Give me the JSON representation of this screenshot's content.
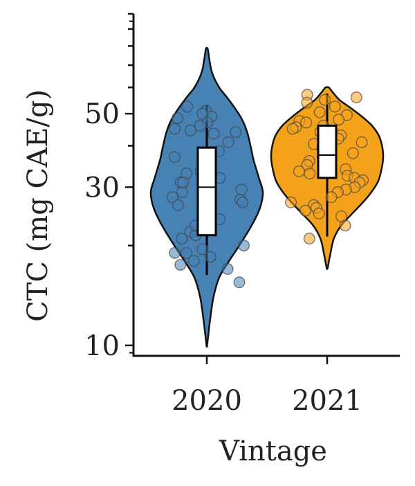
{
  "chart_data": {
    "type": "violin",
    "xlabel": "Vintage",
    "ylabel": "CTC (mg CAE/g)",
    "categories": [
      "2020",
      "2021"
    ],
    "y_scale": "log",
    "ylim": [
      9.3,
      100
    ],
    "y_ticks": [
      10,
      30,
      50
    ],
    "y_tick_labels": [
      "10",
      "30",
      "50"
    ],
    "grid": false,
    "legend": "none",
    "colors": {
      "2020": "#4682b4",
      "2021": "#f5a21b"
    },
    "series": [
      {
        "category": "2020",
        "violin_range": [
          9.9,
          79
        ],
        "density_profile": [
          [
            10.5,
            0.02
          ],
          [
            12,
            0.06
          ],
          [
            14,
            0.12
          ],
          [
            16,
            0.22
          ],
          [
            18,
            0.4
          ],
          [
            20,
            0.58
          ],
          [
            23,
            0.8
          ],
          [
            26,
            0.95
          ],
          [
            29,
            1.0
          ],
          [
            32,
            0.93
          ],
          [
            36,
            0.84
          ],
          [
            40,
            0.78
          ],
          [
            44,
            0.72
          ],
          [
            48,
            0.63
          ],
          [
            52,
            0.5
          ],
          [
            56,
            0.36
          ],
          [
            60,
            0.22
          ],
          [
            66,
            0.1
          ],
          [
            72,
            0.05
          ],
          [
            78,
            0.02
          ]
        ],
        "box": {
          "q1": 21.5,
          "median": 30,
          "q3": 39.5
        },
        "whisker": [
          16.3,
          53
        ],
        "points": [
          51,
          49,
          48.5,
          52.5,
          50,
          47,
          45,
          44,
          43.5,
          46,
          44.5,
          41,
          38.5,
          37,
          35,
          33,
          32,
          31,
          32.5,
          30,
          29,
          28,
          27.5,
          27,
          26.5,
          25.5,
          29.5,
          31,
          33.5,
          36,
          24,
          22,
          21,
          20,
          19.5,
          19,
          18.5,
          18,
          17.5,
          17,
          21.5,
          23,
          19,
          15.5
        ]
      },
      {
        "category": "2021",
        "violin_range": [
          17,
          60
        ],
        "density_profile": [
          [
            17.5,
            0.02
          ],
          [
            19,
            0.06
          ],
          [
            21,
            0.12
          ],
          [
            23,
            0.25
          ],
          [
            25,
            0.45
          ],
          [
            28,
            0.72
          ],
          [
            31,
            0.9
          ],
          [
            34,
            0.97
          ],
          [
            37,
            1.0
          ],
          [
            40,
            0.98
          ],
          [
            43,
            0.92
          ],
          [
            46,
            0.8
          ],
          [
            49,
            0.62
          ],
          [
            52,
            0.42
          ],
          [
            55,
            0.22
          ],
          [
            58,
            0.1
          ],
          [
            60,
            0.03
          ]
        ],
        "box": {
          "q1": 32,
          "median": 37.5,
          "q3": 46
        },
        "whisker": [
          21.3,
          57.5
        ],
        "points": [
          57,
          56,
          55,
          54,
          52.5,
          50.5,
          49.5,
          48,
          47.5,
          47,
          46,
          45.5,
          45,
          44,
          43,
          42,
          41,
          40.5,
          40,
          39.5,
          39,
          38,
          37.5,
          37,
          36,
          35,
          34,
          33.5,
          33,
          32.5,
          32,
          31.5,
          31,
          30,
          29.5,
          29,
          28,
          27,
          26.5,
          26,
          25.5,
          25,
          24.5,
          23,
          21
        ]
      }
    ]
  }
}
